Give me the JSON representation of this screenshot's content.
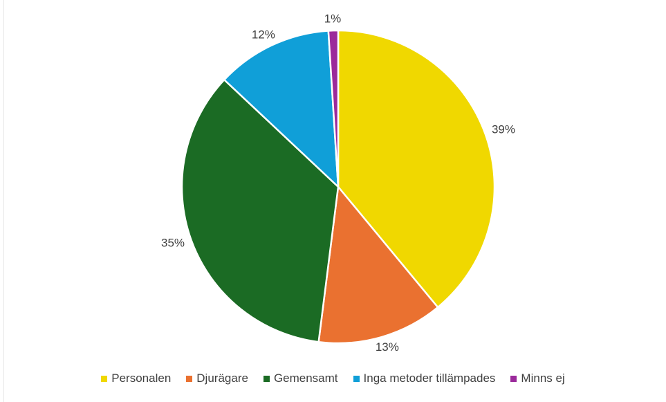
{
  "chart_data": {
    "type": "pie",
    "categories": [
      "Personalen",
      "Djurägare",
      "Gemensamt",
      "Inga metoder tillämpades",
      "Minns ej"
    ],
    "values": [
      39,
      13,
      35,
      12,
      1
    ],
    "value_labels": [
      "39%",
      "13%",
      "35%",
      "12%",
      "1%"
    ],
    "colors": [
      "#f0d800",
      "#ea7130",
      "#1b6b24",
      "#109fd8",
      "#9b2a9b"
    ],
    "legend": "bottom"
  }
}
